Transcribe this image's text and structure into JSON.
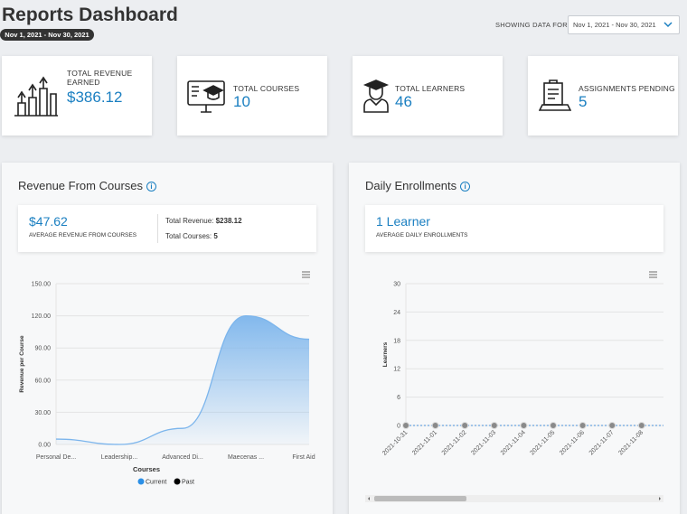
{
  "header": {
    "title": "Reports Dashboard",
    "date_badge": "Nov 1, 2021 - Nov 30, 2021",
    "filter_label": "SHOWING DATA FOR",
    "filter_value": "Nov 1, 2021 - Nov 30, 2021"
  },
  "stats": [
    {
      "label": "TOTAL REVENUE EARNED",
      "value": "$386.12"
    },
    {
      "label": "TOTAL COURSES",
      "value": "10"
    },
    {
      "label": "TOTAL LEARNERS",
      "value": "46"
    },
    {
      "label": "ASSIGNMENTS PENDING",
      "value": "5"
    }
  ],
  "panels": [
    {
      "title": "Revenue From Courses",
      "summary_value": "$47.62",
      "summary_label": "AVERAGE REVENUE FROM COURSES",
      "details": [
        {
          "label": "Total Revenue:",
          "value": "$238.12"
        },
        {
          "label": "Total Courses:",
          "value": "5"
        }
      ]
    },
    {
      "title": "Daily Enrollments",
      "summary_value": "1 Learner",
      "summary_label": "AVERAGE DAILY ENROLLMENTS"
    }
  ],
  "chart_data": [
    {
      "type": "area",
      "categories": [
        "Personal De...",
        "Leadership...",
        "Advanced Di...",
        "Maecenas ...",
        "First Aid"
      ],
      "series": [
        {
          "name": "Current",
          "color": "#7cb5ec",
          "values": [
            5,
            0,
            15,
            120,
            98.12
          ]
        },
        {
          "name": "Past",
          "color": "#000000",
          "values": [
            null,
            null,
            null,
            null,
            null
          ]
        }
      ],
      "x_label": "Courses",
      "y_label": "Revenue per Course",
      "ylim": [
        0,
        150
      ],
      "yticks": [
        {
          "value": 0,
          "label": "0.00"
        },
        {
          "value": 30,
          "label": "30.00"
        },
        {
          "value": 60,
          "label": "60.00"
        },
        {
          "value": 90,
          "label": "90.00"
        },
        {
          "value": 120,
          "label": "120.00"
        },
        {
          "value": 150,
          "label": "150.00"
        }
      ],
      "grid": true,
      "legend": "bottom"
    },
    {
      "type": "line",
      "categories": [
        "2021-10-31",
        "2021-11-01",
        "2021-11-02",
        "2021-11-03",
        "2021-11-04",
        "2021-11-05",
        "2021-11-06",
        "2021-11-07",
        "2021-11-08"
      ],
      "series": [
        {
          "color": "#4a90d9",
          "values": [
            0,
            0,
            0,
            0,
            0,
            0,
            0,
            0,
            0
          ]
        }
      ],
      "y_label": "Learners",
      "ylim": [
        0,
        30
      ],
      "yticks": [
        0,
        6,
        12,
        18,
        24,
        30
      ],
      "grid": true
    }
  ]
}
